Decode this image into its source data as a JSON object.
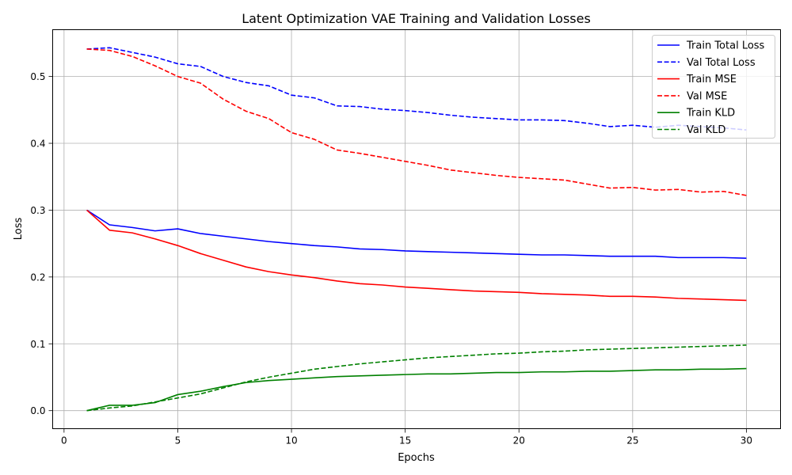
{
  "chart_data": {
    "type": "line",
    "title": "Latent Optimization VAE Training and Validation Losses",
    "xlabel": "Epochs",
    "ylabel": "Loss",
    "xlim": [
      -0.5,
      31.5
    ],
    "ylim": [
      -0.027,
      0.57
    ],
    "xticks": [
      0,
      5,
      10,
      15,
      20,
      25,
      30
    ],
    "yticks": [
      0.0,
      0.1,
      0.2,
      0.3,
      0.4,
      0.5
    ],
    "xtick_labels": [
      "0",
      "5",
      "10",
      "15",
      "20",
      "25",
      "30"
    ],
    "ytick_labels": [
      "0.0",
      "0.1",
      "0.2",
      "0.3",
      "0.4",
      "0.5"
    ],
    "grid": true,
    "legend_position": "top-right",
    "x": [
      1,
      2,
      3,
      4,
      5,
      6,
      7,
      8,
      9,
      10,
      11,
      12,
      13,
      14,
      15,
      16,
      17,
      18,
      19,
      20,
      21,
      22,
      23,
      24,
      25,
      26,
      27,
      28,
      29,
      30
    ],
    "series": [
      {
        "name": "Train Total Loss",
        "color": "#0000ff",
        "style": "solid",
        "values": [
          0.3,
          0.278,
          0.274,
          0.269,
          0.272,
          0.265,
          0.261,
          0.257,
          0.253,
          0.25,
          0.247,
          0.245,
          0.242,
          0.241,
          0.239,
          0.238,
          0.237,
          0.236,
          0.235,
          0.234,
          0.233,
          0.233,
          0.232,
          0.231,
          0.231,
          0.231,
          0.229,
          0.229,
          0.229,
          0.228
        ]
      },
      {
        "name": "Val Total Loss",
        "color": "#0000ff",
        "style": "dashed",
        "values": [
          0.541,
          0.543,
          0.536,
          0.529,
          0.519,
          0.515,
          0.5,
          0.491,
          0.486,
          0.472,
          0.468,
          0.456,
          0.455,
          0.451,
          0.449,
          0.446,
          0.442,
          0.439,
          0.437,
          0.435,
          0.435,
          0.434,
          0.43,
          0.425,
          0.427,
          0.424,
          0.427,
          0.425,
          0.423,
          0.42
        ]
      },
      {
        "name": "Train MSE",
        "color": "#ff0000",
        "style": "solid",
        "values": [
          0.3,
          0.27,
          0.266,
          0.257,
          0.247,
          0.235,
          0.225,
          0.215,
          0.208,
          0.203,
          0.199,
          0.194,
          0.19,
          0.188,
          0.185,
          0.183,
          0.181,
          0.179,
          0.178,
          0.177,
          0.175,
          0.174,
          0.173,
          0.171,
          0.171,
          0.17,
          0.168,
          0.167,
          0.166,
          0.165
        ]
      },
      {
        "name": "Val MSE",
        "color": "#ff0000",
        "style": "dashed",
        "values": [
          0.541,
          0.539,
          0.53,
          0.516,
          0.5,
          0.49,
          0.466,
          0.448,
          0.437,
          0.416,
          0.406,
          0.39,
          0.385,
          0.379,
          0.373,
          0.367,
          0.36,
          0.356,
          0.352,
          0.349,
          0.347,
          0.345,
          0.339,
          0.333,
          0.334,
          0.33,
          0.331,
          0.327,
          0.328,
          0.322
        ]
      },
      {
        "name": "Train KLD",
        "color": "#008000",
        "style": "solid",
        "values": [
          0.0,
          0.008,
          0.008,
          0.012,
          0.024,
          0.029,
          0.036,
          0.042,
          0.045,
          0.047,
          0.049,
          0.051,
          0.052,
          0.053,
          0.054,
          0.055,
          0.055,
          0.056,
          0.057,
          0.057,
          0.058,
          0.058,
          0.059,
          0.059,
          0.06,
          0.061,
          0.061,
          0.062,
          0.062,
          0.063
        ]
      },
      {
        "name": "Val KLD",
        "color": "#008000",
        "style": "dashed",
        "values": [
          0.0,
          0.004,
          0.007,
          0.013,
          0.019,
          0.025,
          0.034,
          0.043,
          0.05,
          0.056,
          0.062,
          0.066,
          0.07,
          0.073,
          0.076,
          0.079,
          0.081,
          0.083,
          0.085,
          0.086,
          0.088,
          0.089,
          0.091,
          0.092,
          0.093,
          0.094,
          0.095,
          0.096,
          0.097,
          0.098
        ]
      }
    ]
  }
}
